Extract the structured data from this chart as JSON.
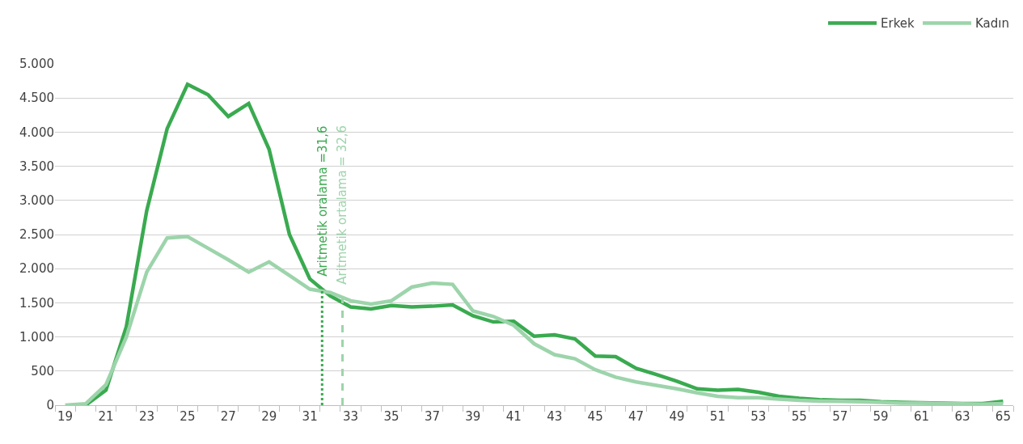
{
  "chart_data": {
    "type": "line",
    "x": [
      19,
      20,
      21,
      22,
      23,
      24,
      25,
      26,
      27,
      28,
      29,
      30,
      31,
      32,
      33,
      34,
      35,
      36,
      37,
      38,
      39,
      40,
      41,
      42,
      43,
      44,
      45,
      46,
      47,
      48,
      49,
      50,
      51,
      52,
      53,
      54,
      55,
      56,
      57,
      58,
      59,
      60,
      61,
      62,
      63,
      64,
      65
    ],
    "series": [
      {
        "name": "Erkek",
        "color": "#3aaa50",
        "values": [
          null,
          0,
          220,
          1150,
          2850,
          4050,
          4700,
          4550,
          4230,
          4420,
          3750,
          2500,
          1850,
          1600,
          1440,
          1410,
          1460,
          1440,
          1450,
          1470,
          1310,
          1220,
          1230,
          1010,
          1030,
          970,
          720,
          710,
          540,
          450,
          350,
          240,
          220,
          230,
          190,
          130,
          100,
          80,
          70,
          70,
          50,
          40,
          35,
          30,
          25,
          25,
          55
        ]
      },
      {
        "name": "Kadın",
        "color": "#9dd4ab",
        "values": [
          0,
          20,
          300,
          1000,
          1950,
          2450,
          2470,
          2300,
          2130,
          1950,
          2100,
          1900,
          1700,
          1650,
          1530,
          1480,
          1530,
          1730,
          1790,
          1770,
          1380,
          1300,
          1170,
          900,
          740,
          680,
          520,
          410,
          340,
          290,
          240,
          180,
          130,
          110,
          110,
          90,
          70,
          60,
          55,
          50,
          40,
          30,
          30,
          25,
          20,
          15,
          25
        ]
      }
    ],
    "xlim": [
      18.5,
      65.5
    ],
    "xticks": [
      19,
      21,
      23,
      25,
      27,
      29,
      31,
      33,
      35,
      37,
      39,
      41,
      43,
      45,
      47,
      49,
      51,
      53,
      55,
      57,
      59,
      61,
      63,
      65
    ],
    "ylim": [
      0,
      5000
    ],
    "yticks": [
      0,
      500,
      {
        "value": 1000,
        "label": "1.000"
      },
      {
        "value": 1500,
        "label": "1.500"
      },
      {
        "value": 2000,
        "label": "2.000"
      },
      {
        "value": 2500,
        "label": "2.500"
      },
      {
        "value": 3000,
        "label": "3.000"
      },
      {
        "value": 3500,
        "label": "3.500"
      },
      {
        "value": 4000,
        "label": "4.000"
      },
      {
        "value": 4500,
        "label": "4.500"
      },
      {
        "value": 5000,
        "label": "5.000"
      }
    ],
    "grid": "y",
    "legend": "top right",
    "marker": "none",
    "line_style": "solid",
    "ref_lines": [
      {
        "axis": "x",
        "value": 31.6,
        "label": "Aritmetik oralama =31,6",
        "color": "#3aaa50",
        "line_style": "dotted"
      },
      {
        "axis": "x",
        "value": 32.6,
        "label": "Aritmetik ortalama = 32,6",
        "color": "#9dd4ab",
        "line_style": "dashed"
      }
    ]
  }
}
